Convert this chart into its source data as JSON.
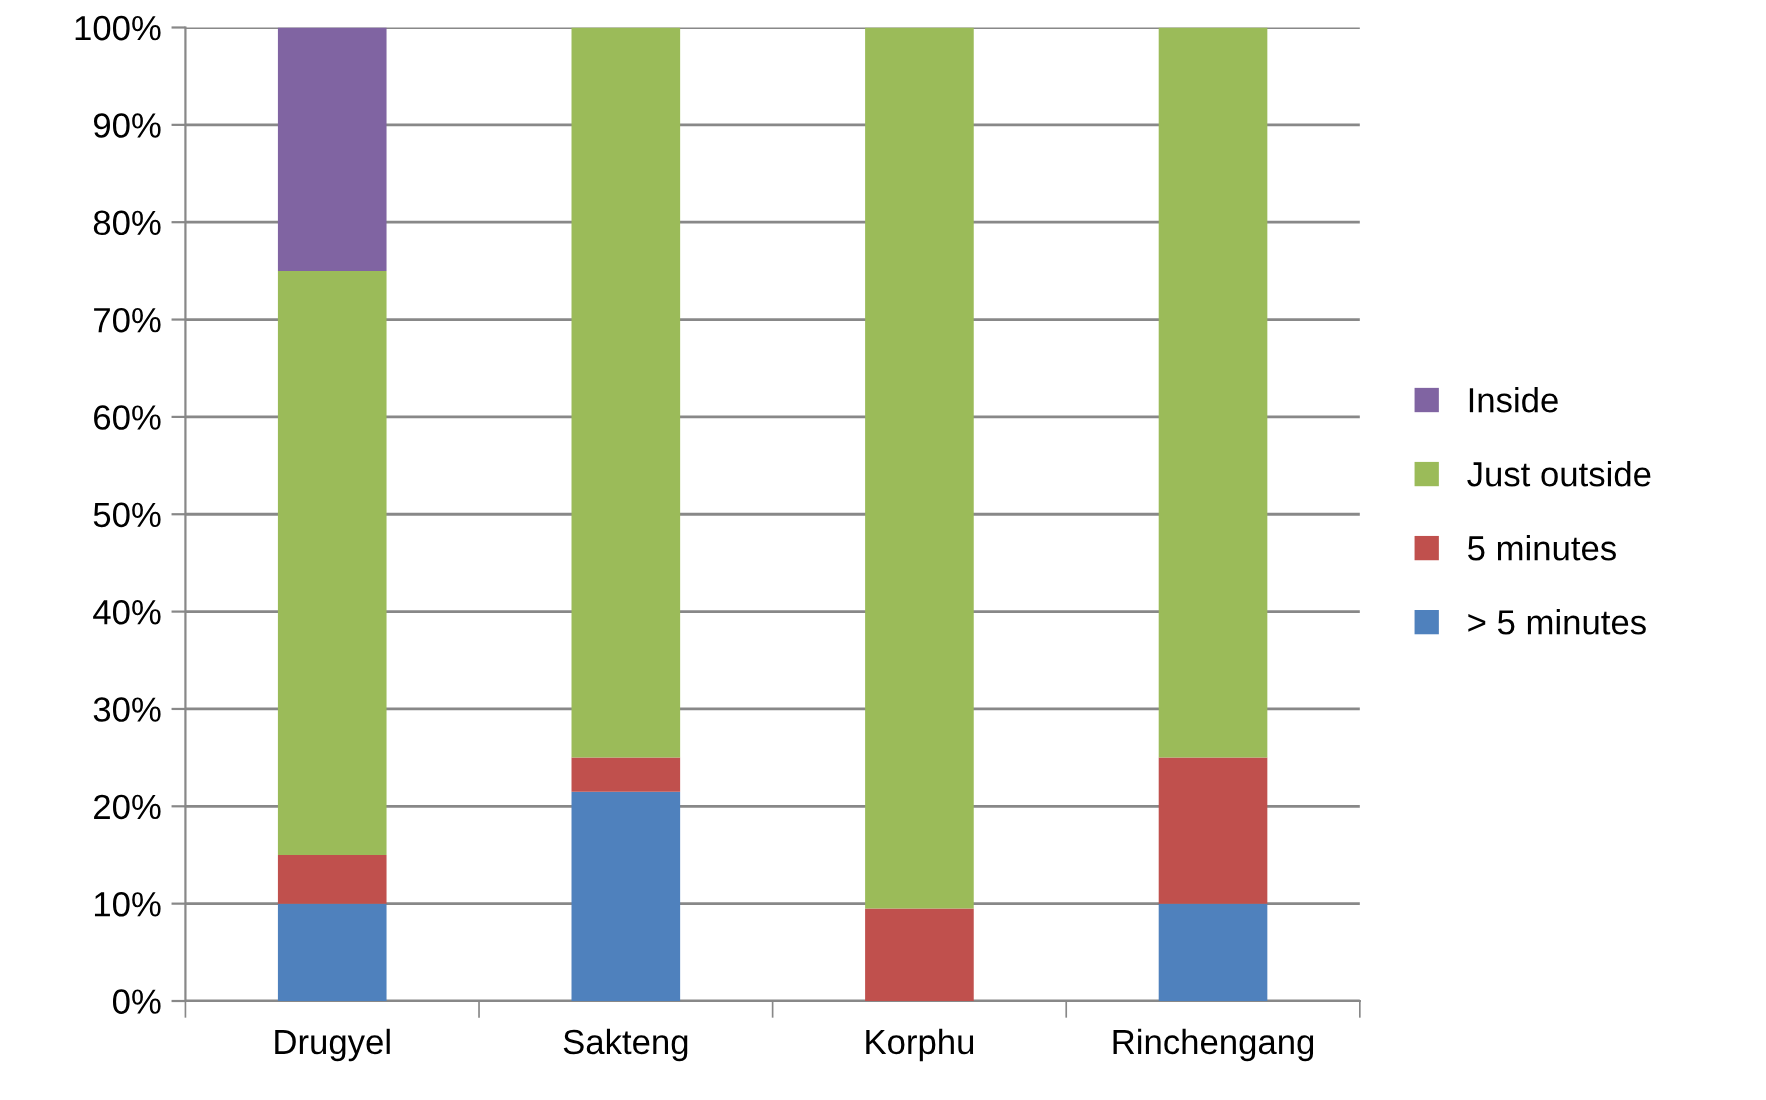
{
  "chart_data": {
    "type": "bar",
    "stacked": true,
    "categories": [
      "Drugyel",
      "Sakteng",
      "Korphu",
      "Rinchengang"
    ],
    "series": [
      {
        "name": "> 5 minutes",
        "color": "#4f81bd",
        "values": [
          10,
          21.5,
          0,
          10
        ]
      },
      {
        "name": "5 minutes",
        "color": "#c0504d",
        "values": [
          5,
          3.5,
          9.5,
          15
        ]
      },
      {
        "name": "Just outside",
        "color": "#9bbb59",
        "values": [
          60,
          75,
          90.5,
          75
        ]
      },
      {
        "name": "Inside",
        "color": "#8064a2",
        "values": [
          25,
          0,
          0,
          0
        ]
      }
    ],
    "ylim": [
      0,
      100
    ],
    "yticks": [
      {
        "value": 0,
        "label": "0%"
      },
      {
        "value": 10,
        "label": "10%"
      },
      {
        "value": 20,
        "label": "20%"
      },
      {
        "value": 30,
        "label": "30%"
      },
      {
        "value": 40,
        "label": "40%"
      },
      {
        "value": 50,
        "label": "50%"
      },
      {
        "value": 60,
        "label": "60%"
      },
      {
        "value": 70,
        "label": "70%"
      },
      {
        "value": 80,
        "label": "80%"
      },
      {
        "value": 90,
        "label": "90%"
      },
      {
        "value": 100,
        "label": "100%"
      }
    ],
    "grid": "y",
    "legend": "right"
  }
}
